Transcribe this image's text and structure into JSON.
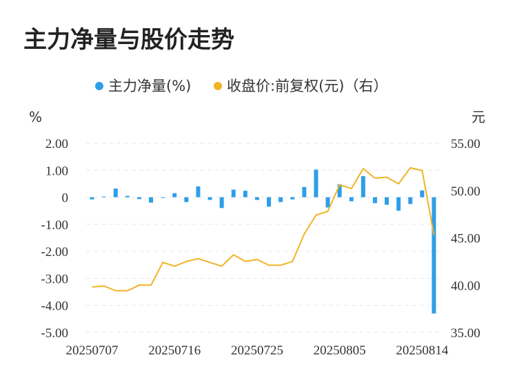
{
  "title": "主力净量与股价走势",
  "chart_data": {
    "type": "bar+line",
    "title": "主力净量与股价走势",
    "y_left_unit": "%",
    "y_right_unit": "元",
    "y_left_ticks": [
      "2.00",
      "1.00",
      "0",
      "-1.00",
      "-2.00",
      "-3.00",
      "-4.00",
      "-5.00"
    ],
    "y_right_ticks": [
      "55.00",
      "50.00",
      "45.00",
      "40.00",
      "35.00"
    ],
    "y_left_range": [
      -5,
      2
    ],
    "y_right_range": [
      35,
      55
    ],
    "x_tick_labels": [
      "20250707",
      "20250716",
      "20250725",
      "20250805",
      "20250814"
    ],
    "x_tick_index": [
      0,
      7,
      14,
      21,
      28
    ],
    "grid": "horizontal-dashed",
    "legend_position": "top-center",
    "series": [
      {
        "name": "主力净量(%)",
        "type": "bar",
        "axis": "left",
        "color": "#2e9ee8",
        "values": [
          -0.08,
          0.02,
          0.32,
          0.05,
          -0.07,
          -0.2,
          -0.02,
          0.15,
          -0.18,
          0.4,
          -0.1,
          -0.4,
          0.28,
          0.24,
          -0.1,
          -0.35,
          -0.18,
          -0.08,
          0.38,
          1.02,
          -0.38,
          0.48,
          -0.15,
          0.78,
          -0.22,
          -0.28,
          -0.5,
          -0.25,
          0.25,
          -4.3
        ]
      },
      {
        "name": "收盘价:前复权(元)（右）",
        "type": "line",
        "axis": "right",
        "color": "#f0b323",
        "values": [
          39.8,
          39.9,
          39.4,
          39.4,
          40.0,
          40.0,
          42.4,
          42.0,
          42.5,
          42.8,
          42.4,
          42.0,
          43.2,
          42.5,
          42.7,
          42.1,
          42.1,
          42.5,
          45.4,
          47.4,
          47.8,
          50.6,
          50.2,
          52.3,
          51.3,
          51.4,
          50.7,
          52.4,
          52.1,
          45.3
        ]
      }
    ]
  }
}
